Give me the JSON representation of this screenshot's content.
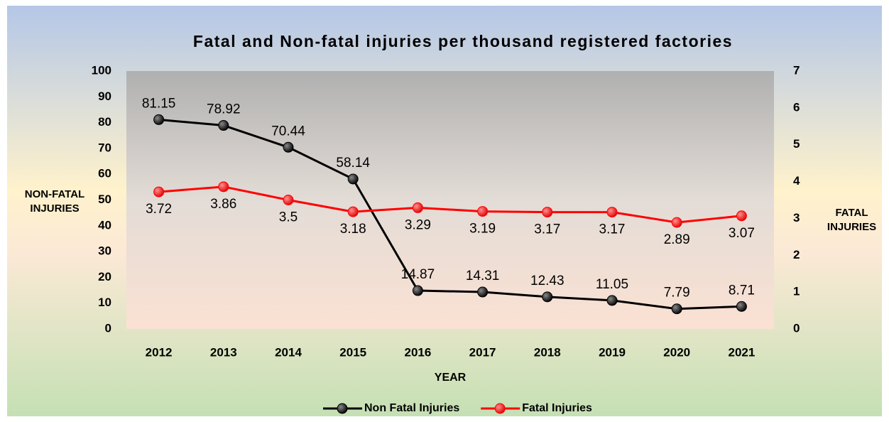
{
  "chart_data": {
    "type": "line",
    "title": "Fatal and Non-fatal injuries per thousand registered factories",
    "x_label": "YEAR",
    "y_label": "NON-FATAL INJURIES",
    "y2_label": "FATAL INJURIES",
    "categories": [
      "2012",
      "2013",
      "2014",
      "2015",
      "2016",
      "2017",
      "2018",
      "2019",
      "2020",
      "2021"
    ],
    "series": [
      {
        "name": "Non Fatal Injuries",
        "color": "#000000",
        "axis": "y",
        "values": [
          81.15,
          78.92,
          70.44,
          58.14,
          14.87,
          14.31,
          12.43,
          11.05,
          7.79,
          8.71
        ]
      },
      {
        "name": "Fatal Injuries",
        "color": "#ff0000",
        "axis": "y2",
        "values": [
          3.72,
          3.86,
          3.5,
          3.18,
          3.29,
          3.19,
          3.17,
          3.17,
          2.89,
          3.07
        ]
      }
    ],
    "ylim": [
      0,
      100
    ],
    "yticks": [
      0,
      10,
      20,
      30,
      40,
      50,
      60,
      70,
      80,
      90,
      100
    ],
    "y2lim": [
      0,
      7
    ],
    "y2ticks": [
      0,
      1,
      2,
      3,
      4,
      5,
      6,
      7
    ],
    "legend": "bottom"
  }
}
